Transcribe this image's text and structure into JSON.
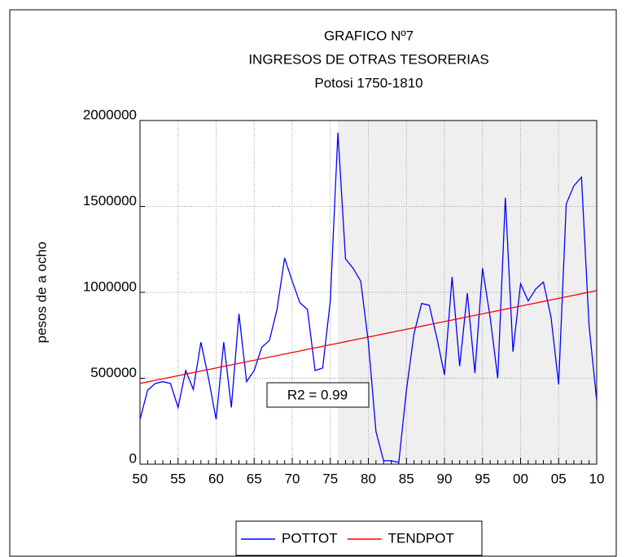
{
  "chart_data": {
    "type": "line",
    "title": [
      "GRAFICO Nº7",
      "INGRESOS DE OTRAS TESORERIAS",
      "Potosi 1750-1810"
    ],
    "ylabel": "pesos de a ocho",
    "annotation": "R2 = 0.99",
    "categories": [
      "50",
      null,
      null,
      null,
      null,
      "55",
      null,
      null,
      null,
      null,
      "60",
      null,
      null,
      null,
      null,
      "65",
      null,
      null,
      null,
      null,
      "70",
      null,
      null,
      null,
      null,
      "75",
      null,
      null,
      null,
      null,
      "80",
      null,
      null,
      null,
      null,
      "85",
      null,
      null,
      null,
      null,
      "90",
      null,
      null,
      null,
      null,
      "95",
      null,
      null,
      null,
      null,
      "00",
      null,
      null,
      null,
      null,
      "05",
      null,
      null,
      null,
      null,
      "10"
    ],
    "series": [
      {
        "name": "POTTOT",
        "color": "#0000ff",
        "values": [
          260000,
          430000,
          470000,
          480000,
          470000,
          330000,
          545000,
          435000,
          710000,
          500000,
          260000,
          710000,
          330000,
          875000,
          480000,
          545000,
          680000,
          720000,
          900000,
          1200000,
          1065000,
          940000,
          900000,
          545000,
          560000,
          950000,
          1930000,
          1195000,
          1140000,
          1065000,
          710000,
          190000,
          20000,
          20000,
          10000,
          430000,
          760000,
          935000,
          925000,
          735000,
          520000,
          1090000,
          570000,
          995000,
          530000,
          1140000,
          855000,
          500000,
          1550000,
          655000,
          1050000,
          950000,
          1020000,
          1060000,
          855000,
          465000,
          1515000,
          1620000,
          1670000,
          805000,
          370000
        ]
      },
      {
        "name": "TENDPOT",
        "color": "#ff0000",
        "values": [
          470000,
          479000,
          488000,
          497000,
          506000,
          515000,
          524000,
          533000,
          542000,
          551000,
          560000,
          569000,
          578000,
          587000,
          596000,
          605000,
          614000,
          623000,
          632000,
          641000,
          650000,
          659000,
          668000,
          677000,
          686000,
          695000,
          704000,
          713000,
          722000,
          731000,
          740000,
          749000,
          758000,
          767000,
          776000,
          785000,
          794000,
          803000,
          812000,
          821000,
          830000,
          839000,
          848000,
          857000,
          866000,
          875000,
          884000,
          893000,
          902000,
          911000,
          920000,
          929000,
          938000,
          947000,
          956000,
          965000,
          974000,
          983000,
          992000,
          1001000,
          1010000
        ]
      }
    ],
    "ylim": [
      0,
      2000000
    ],
    "yticks": [
      0,
      500000,
      1000000,
      1500000,
      2000000
    ],
    "grid": true,
    "shaded": {
      "from": 26,
      "to": 60,
      "color": "#efefef"
    }
  }
}
